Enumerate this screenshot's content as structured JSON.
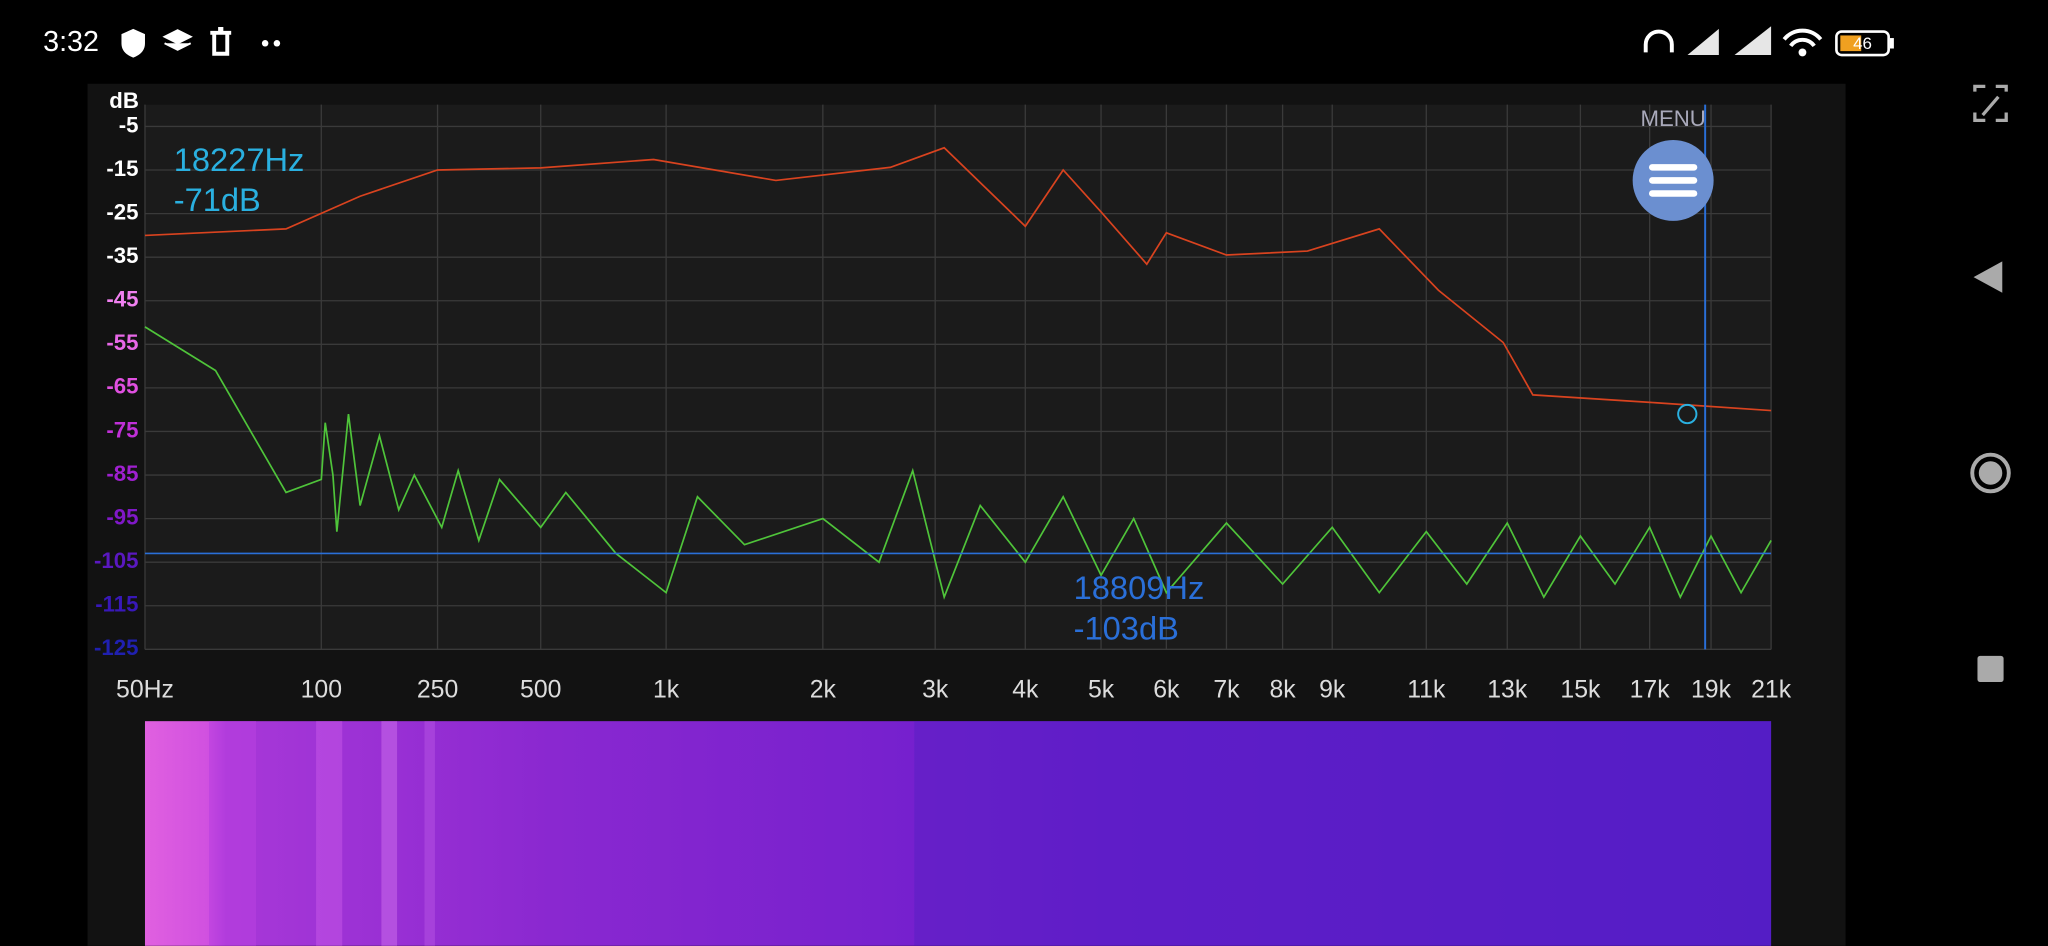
{
  "status_bar": {
    "time": "3:32",
    "battery": "46"
  },
  "menu_label": "MENU",
  "chart_data": {
    "type": "line",
    "y_label": "dB",
    "ylim": [
      -125,
      0
    ],
    "yticks": [
      -5,
      -15,
      -25,
      -35,
      -45,
      -55,
      -65,
      -75,
      -85,
      -95,
      -105,
      -115,
      -125
    ],
    "xlim": [
      50,
      21000
    ],
    "xticks": [
      {
        "value": 50,
        "label": "50Hz"
      },
      100,
      250,
      500,
      {
        "value": 1000,
        "label": "1k"
      },
      {
        "value": 2000,
        "label": "2k"
      },
      {
        "value": 3000,
        "label": "3k"
      },
      {
        "value": 4000,
        "label": "4k"
      },
      {
        "value": 5000,
        "label": "5k"
      },
      {
        "value": 6000,
        "label": "6k"
      },
      {
        "value": 7000,
        "label": "7k"
      },
      {
        "value": 8000,
        "label": "8k"
      },
      {
        "value": 9000,
        "label": "9k"
      },
      {
        "value": 11000,
        "label": "11k"
      },
      {
        "value": 13000,
        "label": "13k"
      },
      {
        "value": 15000,
        "label": "15k"
      },
      {
        "value": 17000,
        "label": "17k"
      },
      {
        "value": 19000,
        "label": "19k"
      },
      {
        "value": 21000,
        "label": "21k"
      }
    ],
    "grid": true,
    "series": [
      {
        "color": "#d9431f",
        "x": [
          50,
          90,
          150,
          250,
          500,
          950,
          1700,
          2600,
          3100,
          4000,
          4500,
          5000,
          5700,
          6000,
          7000,
          8500,
          10000,
          11300,
          12900,
          13700,
          17200,
          21000
        ],
        "values": [
          -30,
          -28.5,
          -21,
          -15,
          -14.5,
          -12.6,
          -17.4,
          -14.4,
          -9.9,
          -27.9,
          -15,
          -24.6,
          -36.6,
          -29.4,
          -34.5,
          -33.6,
          -28.5,
          -42.6,
          -54.6,
          -66.6,
          -68.4,
          -70.2
        ]
      },
      {
        "color": "#4fc43a",
        "x": [
          50,
          70,
          90,
          100,
          105,
          115,
          120,
          135,
          150,
          175,
          200,
          220,
          260,
          300,
          350,
          400,
          500,
          600,
          800,
          1000,
          1200,
          1500,
          2000,
          2500,
          2800,
          3100,
          3500,
          4000,
          4500,
          5000,
          5500,
          6000,
          7000,
          8000,
          9000,
          10000,
          11000,
          12000,
          13000,
          14000,
          15000,
          16000,
          17000,
          18000,
          19000,
          20000,
          21000
        ],
        "values": [
          -51,
          -61,
          -89,
          -86,
          -73,
          -85,
          -98,
          -71,
          -92,
          -76,
          -93,
          -85,
          -97,
          -84,
          -100,
          -86,
          -97,
          -89,
          -103,
          -112,
          -90,
          -101,
          -95,
          -105,
          -84,
          -113,
          -92,
          -105,
          -90,
          -108,
          -95,
          -112,
          -96,
          -110,
          -97,
          -112,
          -98,
          -110,
          -96,
          -113,
          -99,
          -110,
          -97,
          -113,
          -99,
          -112,
          -100
        ]
      }
    ],
    "annotations": [
      {
        "x": 18227,
        "y": -71,
        "x_label": "18227Hz",
        "y_label": "-71dB",
        "color": "#2ab0e0"
      },
      {
        "x": 18809,
        "y": -103,
        "x_label": "18809Hz",
        "y_label": "-103dB",
        "color": "#2a6fd8"
      }
    ]
  }
}
